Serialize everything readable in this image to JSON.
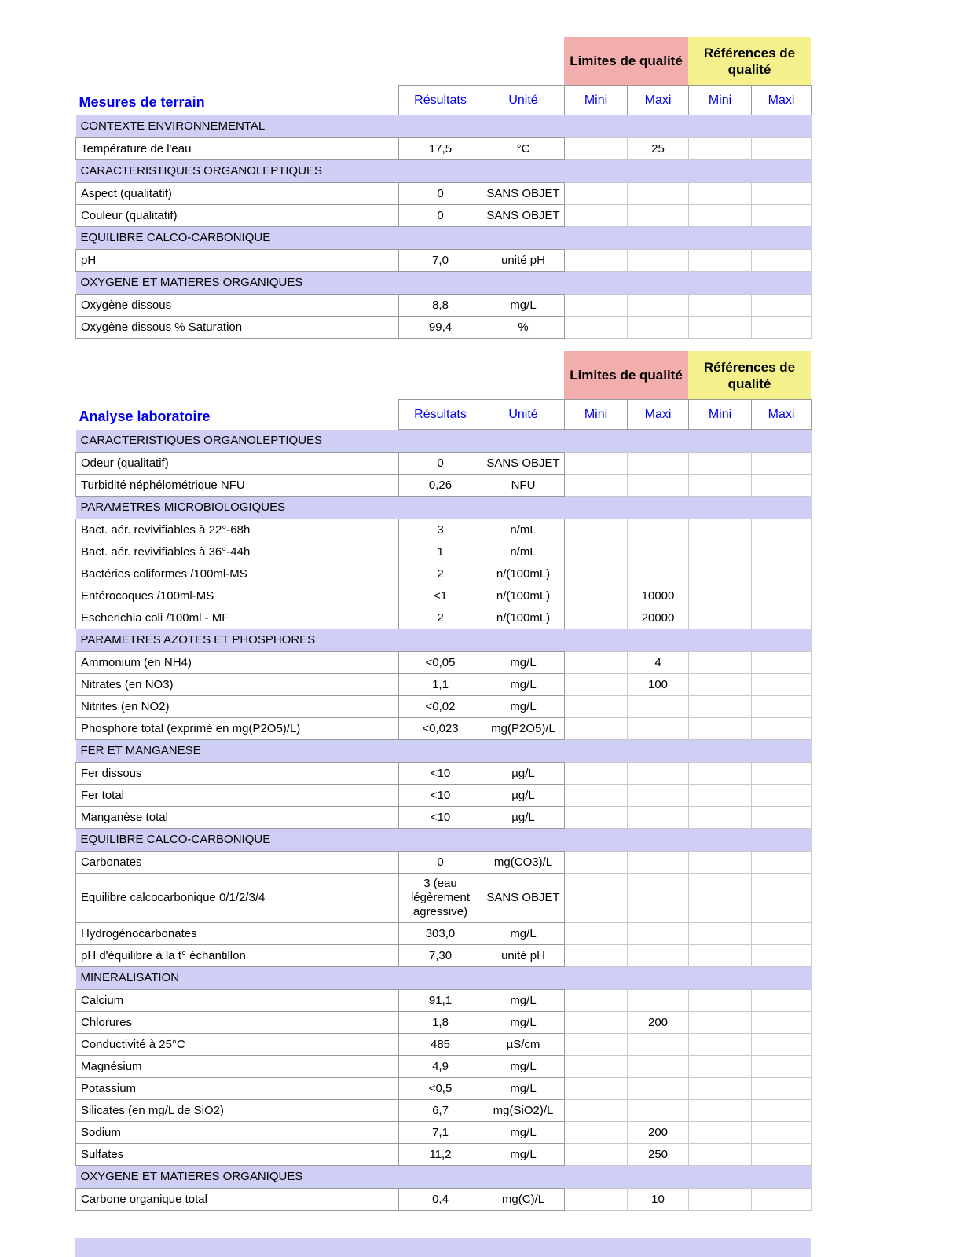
{
  "colors": {
    "limites_bg": "#F2AEAC",
    "references_bg": "#F4F08C",
    "section_bg": "#CFCFF5",
    "accent_blue": "#0000EE",
    "grid_dark": "#999999",
    "grid_light": "#C9C9C9"
  },
  "banner": {
    "limites": "Limites de qualité",
    "references": "Références de qualité"
  },
  "tables": [
    {
      "title": "Mesures de terrain",
      "columns": [
        "Résultats",
        "Unité",
        "Mini",
        "Maxi",
        "Mini",
        "Maxi"
      ],
      "rows": [
        {
          "type": "section",
          "label": "CONTEXTE ENVIRONNEMENTAL"
        },
        {
          "type": "data",
          "cells": [
            "Température de l'eau",
            "17,5",
            "°C",
            "",
            "25",
            "",
            ""
          ]
        },
        {
          "type": "section",
          "label": "CARACTERISTIQUES ORGANOLEPTIQUES"
        },
        {
          "type": "data",
          "cells": [
            "Aspect (qualitatif)",
            "0",
            "SANS OBJET",
            "",
            "",
            "",
            ""
          ]
        },
        {
          "type": "data",
          "cells": [
            "Couleur (qualitatif)",
            "0",
            "SANS OBJET",
            "",
            "",
            "",
            ""
          ]
        },
        {
          "type": "section",
          "label": "EQUILIBRE CALCO-CARBONIQUE"
        },
        {
          "type": "data",
          "cells": [
            "pH",
            "7,0",
            "unité pH",
            "",
            "",
            "",
            ""
          ]
        },
        {
          "type": "section",
          "label": "OXYGENE ET MATIERES ORGANIQUES"
        },
        {
          "type": "data",
          "cells": [
            "Oxygène dissous",
            "8,8",
            "mg/L",
            "",
            "",
            "",
            ""
          ]
        },
        {
          "type": "data",
          "cells": [
            "Oxygène dissous % Saturation",
            "99,4",
            "%",
            "",
            "",
            "",
            ""
          ]
        }
      ]
    },
    {
      "title": "Analyse laboratoire",
      "columns": [
        "Résultats",
        "Unité",
        "Mini",
        "Maxi",
        "Mini",
        "Maxi"
      ],
      "rows": [
        {
          "type": "section",
          "label": "CARACTERISTIQUES ORGANOLEPTIQUES"
        },
        {
          "type": "data",
          "cells": [
            "Odeur (qualitatif)",
            "0",
            "SANS OBJET",
            "",
            "",
            "",
            ""
          ]
        },
        {
          "type": "data",
          "cells": [
            "Turbidité néphélométrique NFU",
            "0,26",
            "NFU",
            "",
            "",
            "",
            ""
          ]
        },
        {
          "type": "section",
          "label": "PARAMETRES MICROBIOLOGIQUES"
        },
        {
          "type": "data",
          "cells": [
            "Bact. aér. revivifiables à 22°-68h",
            "3",
            "n/mL",
            "",
            "",
            "",
            ""
          ]
        },
        {
          "type": "data",
          "cells": [
            "Bact. aér. revivifiables à 36°-44h",
            "1",
            "n/mL",
            "",
            "",
            "",
            ""
          ]
        },
        {
          "type": "data",
          "cells": [
            "Bactéries coliformes /100ml-MS",
            "2",
            "n/(100mL)",
            "",
            "",
            "",
            ""
          ]
        },
        {
          "type": "data",
          "cells": [
            "Entérocoques /100ml-MS",
            "<1",
            "n/(100mL)",
            "",
            "10000",
            "",
            ""
          ]
        },
        {
          "type": "data",
          "cells": [
            "Escherichia coli /100ml - MF",
            "2",
            "n/(100mL)",
            "",
            "20000",
            "",
            ""
          ]
        },
        {
          "type": "section",
          "label": "PARAMETRES AZOTES ET PHOSPHORES"
        },
        {
          "type": "data",
          "cells": [
            "Ammonium (en NH4)",
            "<0,05",
            "mg/L",
            "",
            "4",
            "",
            ""
          ]
        },
        {
          "type": "data",
          "cells": [
            "Nitrates (en NO3)",
            "1,1",
            "mg/L",
            "",
            "100",
            "",
            ""
          ]
        },
        {
          "type": "data",
          "cells": [
            "Nitrites (en NO2)",
            "<0,02",
            "mg/L",
            "",
            "",
            "",
            ""
          ]
        },
        {
          "type": "data",
          "cells": [
            "Phosphore total (exprimé en mg(P2O5)/L)",
            "<0,023",
            "mg(P2O5)/L",
            "",
            "",
            "",
            ""
          ]
        },
        {
          "type": "section",
          "label": "FER ET MANGANESE"
        },
        {
          "type": "data",
          "cells": [
            "Fer dissous",
            "<10",
            "µg/L",
            "",
            "",
            "",
            ""
          ]
        },
        {
          "type": "data",
          "cells": [
            "Fer total",
            "<10",
            "µg/L",
            "",
            "",
            "",
            ""
          ]
        },
        {
          "type": "data",
          "cells": [
            "Manganèse total",
            "<10",
            "µg/L",
            "",
            "",
            "",
            ""
          ]
        },
        {
          "type": "section",
          "label": "EQUILIBRE CALCO-CARBONIQUE"
        },
        {
          "type": "data",
          "cells": [
            "Carbonates",
            "0",
            "mg(CO3)/L",
            "",
            "",
            "",
            ""
          ]
        },
        {
          "type": "data",
          "cells": [
            "Equilibre calcocarbonique 0/1/2/3/4",
            "3 (eau légèrement agressive)",
            "SANS OBJET",
            "",
            "",
            "",
            ""
          ]
        },
        {
          "type": "data",
          "cells": [
            "Hydrogénocarbonates",
            "303,0",
            "mg/L",
            "",
            "",
            "",
            ""
          ]
        },
        {
          "type": "data",
          "cells": [
            "pH d'équilibre à la t° échantillon",
            "7,30",
            "unité pH",
            "",
            "",
            "",
            ""
          ]
        },
        {
          "type": "section",
          "label": "MINERALISATION"
        },
        {
          "type": "data",
          "cells": [
            "Calcium",
            "91,1",
            "mg/L",
            "",
            "",
            "",
            ""
          ]
        },
        {
          "type": "data",
          "cells": [
            "Chlorures",
            "1,8",
            "mg/L",
            "",
            "200",
            "",
            ""
          ]
        },
        {
          "type": "data",
          "cells": [
            "Conductivité à 25°C",
            "485",
            "µS/cm",
            "",
            "",
            "",
            ""
          ]
        },
        {
          "type": "data",
          "cells": [
            "Magnésium",
            "4,9",
            "mg/L",
            "",
            "",
            "",
            ""
          ]
        },
        {
          "type": "data",
          "cells": [
            "Potassium",
            "<0,5",
            "mg/L",
            "",
            "",
            "",
            ""
          ]
        },
        {
          "type": "data",
          "cells": [
            "Silicates (en mg/L de SiO2)",
            "6,7",
            "mg(SiO2)/L",
            "",
            "",
            "",
            ""
          ]
        },
        {
          "type": "data",
          "cells": [
            "Sodium",
            "7,1",
            "mg/L",
            "",
            "200",
            "",
            ""
          ]
        },
        {
          "type": "data",
          "cells": [
            "Sulfates",
            "11,2",
            "mg/L",
            "",
            "250",
            "",
            ""
          ]
        },
        {
          "type": "section",
          "label": "OXYGENE ET MATIERES ORGANIQUES"
        },
        {
          "type": "data",
          "cells": [
            "Carbone organique total",
            "0,4",
            "mg(C)/L",
            "",
            "10",
            "",
            ""
          ]
        }
      ]
    }
  ]
}
